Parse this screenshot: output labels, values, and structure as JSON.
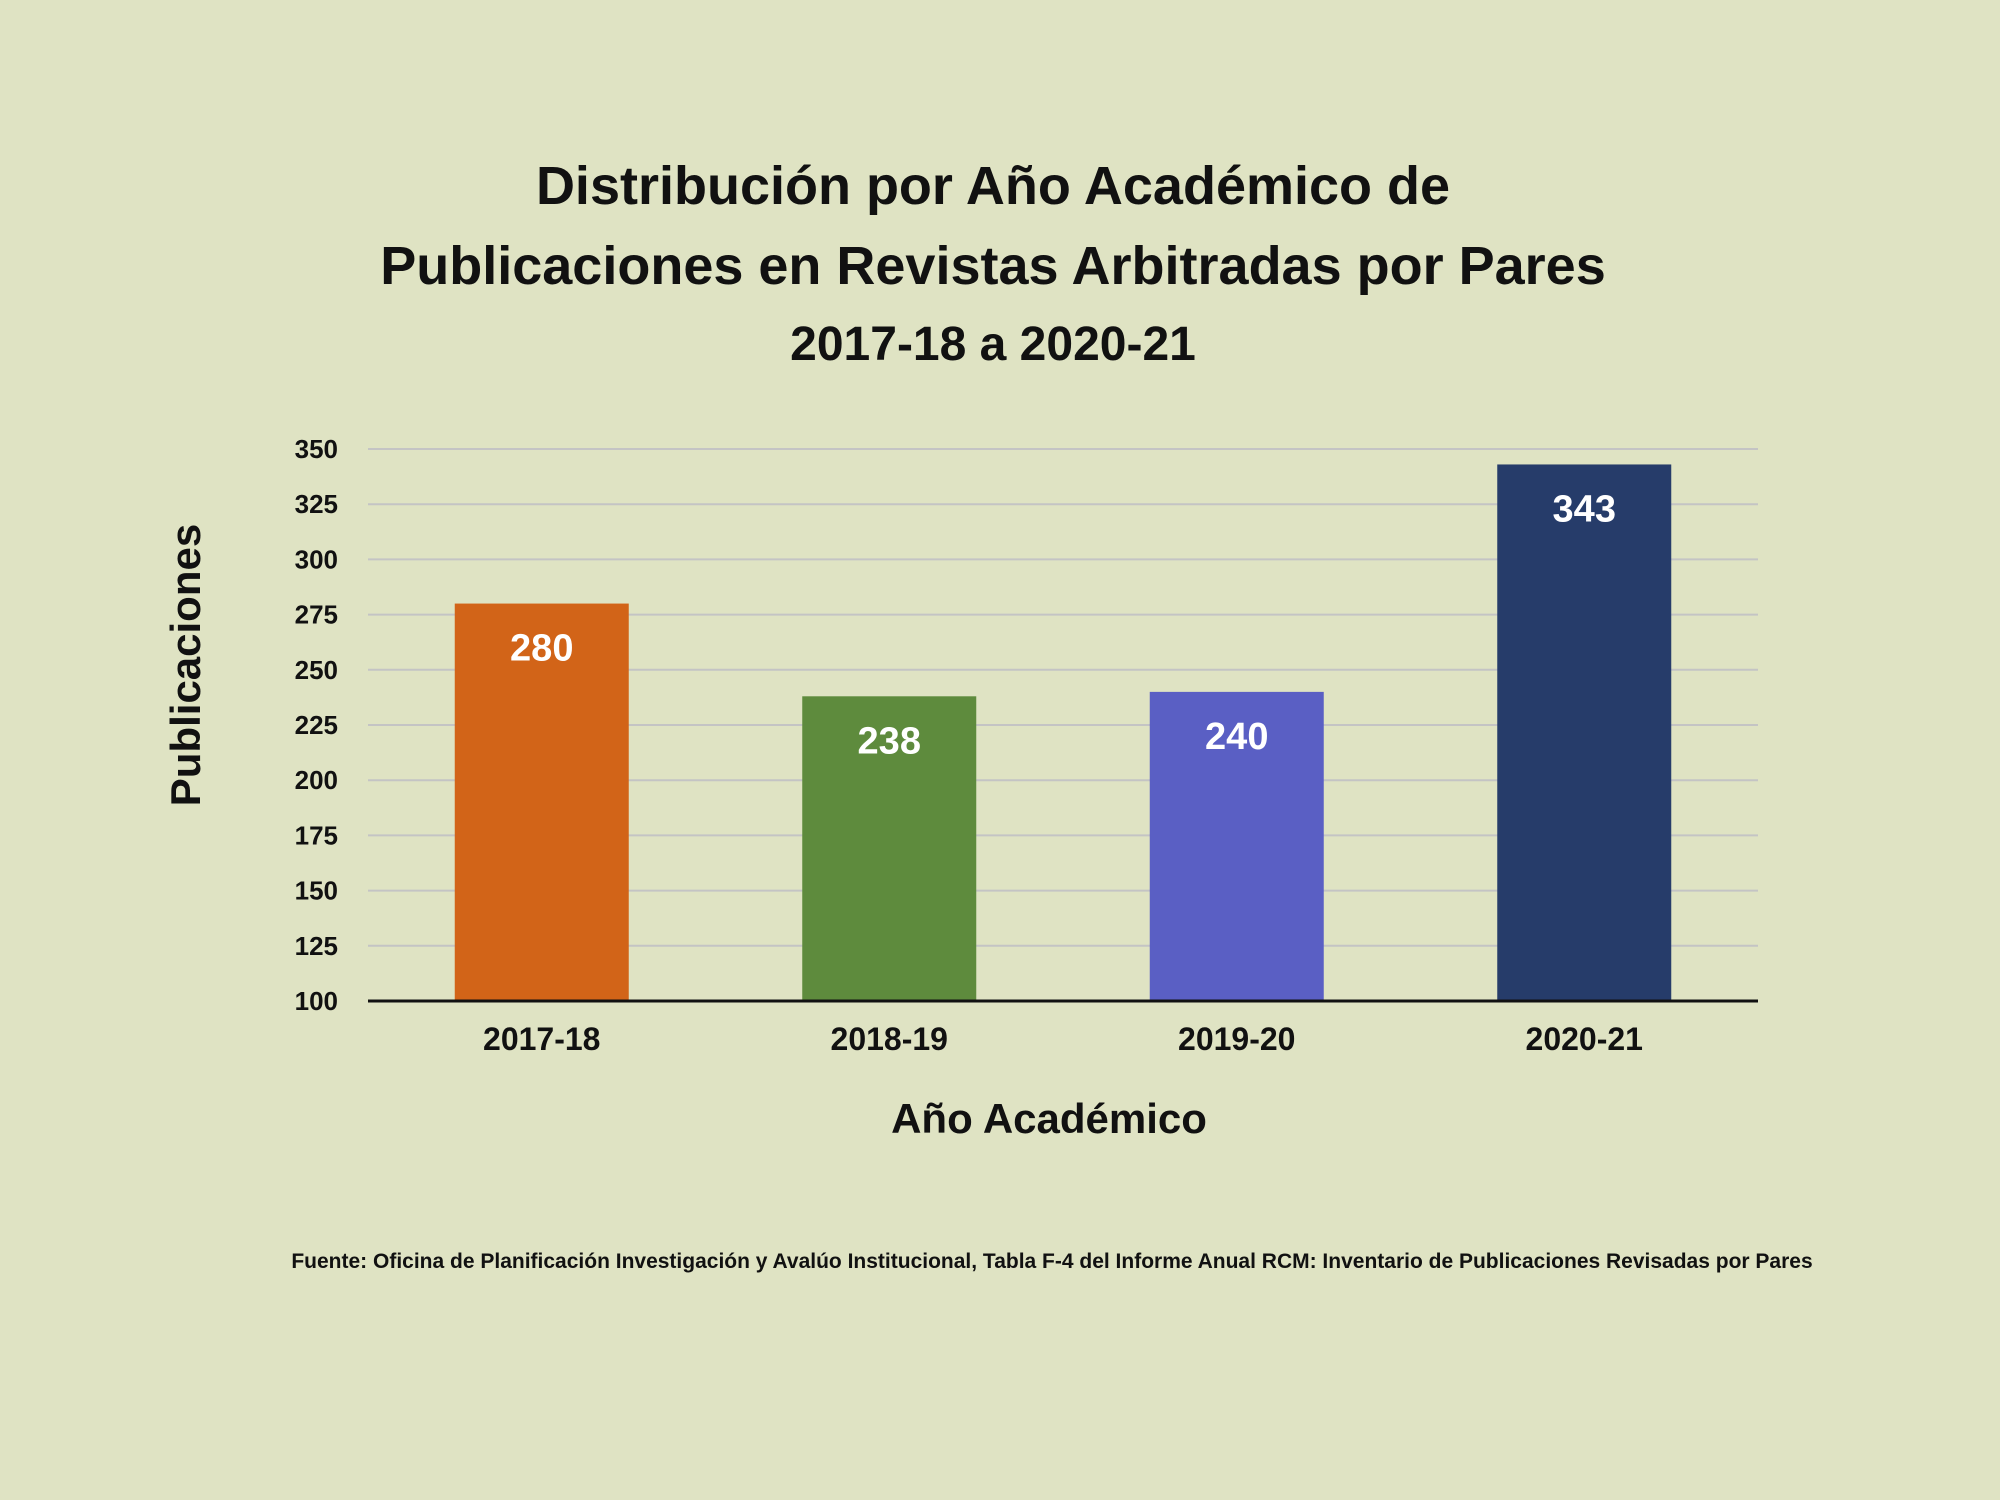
{
  "chart_data": {
    "type": "bar",
    "title": "Distribución por Año Académico de Publicaciones en Revistas Arbitradas por Pares 2017-18 a 2020-21",
    "title_lines": [
      "Distribución por Año Académico de",
      "Publicaciones en Revistas Arbitradas por Pares",
      "2017-18 a 2020-21"
    ],
    "categories": [
      "2017-18",
      "2018-19",
      "2019-20",
      "2020-21"
    ],
    "values": [
      280,
      238,
      240,
      343
    ],
    "colors": [
      "#d26418",
      "#5e8b3d",
      "#5a5fc4",
      "#263c6a"
    ],
    "xlabel": "Año Académico",
    "ylabel": "Publicaciones",
    "ylim": [
      100,
      350
    ],
    "yticks": [
      100,
      125,
      150,
      175,
      200,
      225,
      250,
      275,
      300,
      325,
      350
    ],
    "grid": true,
    "legend": "none",
    "data_labels": "inside-top"
  },
  "source_note": "Fuente: Oficina de Planificación Investigación y Avalúo Institucional, Tabla F-4 del Informe Anual RCM: Inventario de Publicaciones Revisadas por Pares",
  "colors": {
    "background": "#dfe3c3",
    "gridline": "#c4c4c4",
    "axis": "#111111",
    "text": "#111111",
    "data_label": "#ffffff"
  }
}
